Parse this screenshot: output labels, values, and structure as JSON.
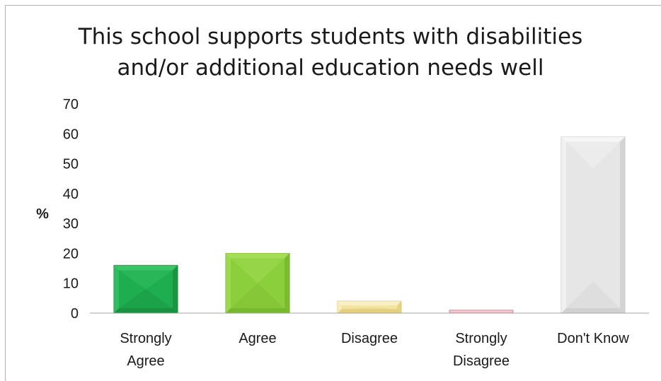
{
  "chart_data": {
    "type": "bar",
    "title_lines": [
      "This school supports students with disabilities",
      "and/or additional education needs well"
    ],
    "xlabel": "",
    "ylabel": "%",
    "ylim": [
      0,
      70
    ],
    "yticks": [
      "0",
      "10",
      "20",
      "30",
      "40",
      "50",
      "60",
      "70"
    ],
    "grid": false,
    "legend": "none",
    "categories": [
      [
        "Strongly",
        "Agree"
      ],
      [
        "Agree"
      ],
      [
        "Disagree"
      ],
      [
        "Strongly",
        "Disagree"
      ],
      [
        "Don't Know"
      ]
    ],
    "values": [
      16,
      20,
      4,
      1,
      59
    ],
    "colors": [
      {
        "base": "#1fae4f",
        "light": "#3cc76a",
        "dark": "#15853a"
      },
      {
        "base": "#8ccf3c",
        "light": "#a6df5c",
        "dark": "#6fae28"
      },
      {
        "base": "#f3e3a0",
        "light": "#fbf1c6",
        "dark": "#dcc66f"
      },
      {
        "base": "#f2b8c6",
        "light": "#f9d6df",
        "dark": "#d8909f"
      },
      {
        "base": "#e6e6e6",
        "light": "#f7f7f7",
        "dark": "#c8c8c8"
      }
    ]
  }
}
